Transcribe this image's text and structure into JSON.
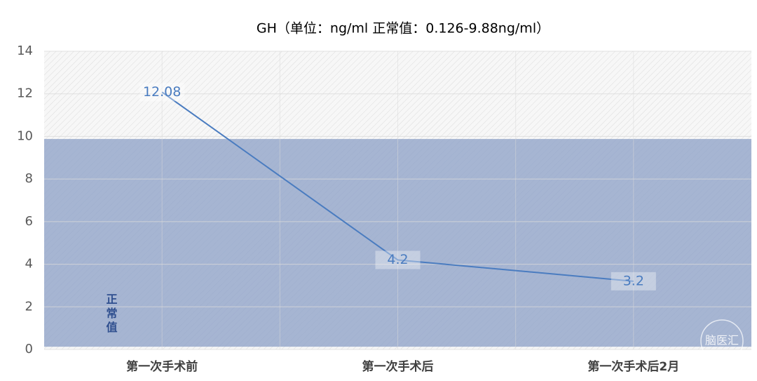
{
  "chart_data": {
    "type": "line",
    "title": "GH（单位：ng/ml   正常值：0.126-9.88ng/ml）",
    "categories": [
      "第一次手术前",
      "第一次手术后",
      "第一次手术后2月"
    ],
    "series": [
      {
        "name": "GH",
        "color": "#4a7cc0",
        "values": [
          12.08,
          4.2,
          3.2
        ]
      }
    ],
    "normal_range": [
      0.126,
      9.88
    ],
    "normal_range_color": "#a6b5d2",
    "normal_range_label": "正常值",
    "ylim": [
      0,
      14
    ],
    "yticks": [
      0,
      2,
      4,
      6,
      8,
      10,
      12,
      14
    ],
    "grid": true,
    "watermark": "脑医汇"
  }
}
